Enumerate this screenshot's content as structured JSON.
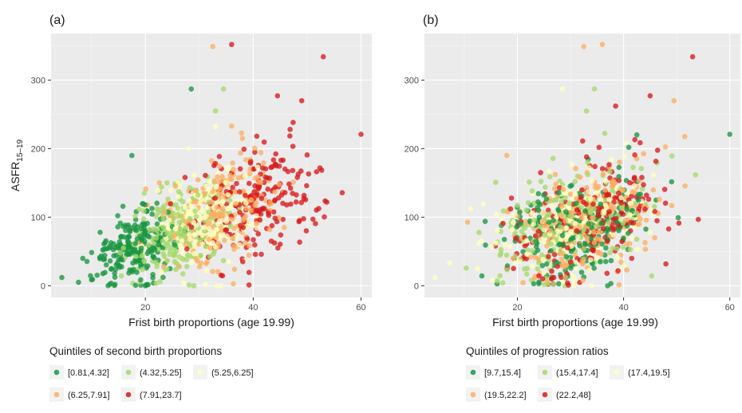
{
  "colors": {
    "q1": "#1a9641",
    "q2": "#a6d96a",
    "q3": "#ffffbf",
    "q4": "#fdae61",
    "q5": "#d7191c"
  },
  "chart_data": [
    {
      "type": "scatter",
      "panel_label": "(a)",
      "xlabel": "Frist birth proportions (age 19.99)",
      "ylabel": "ASFR",
      "ylabel_subscript": "15–19",
      "xlim": [
        2.5,
        62
      ],
      "ylim": [
        -17,
        368
      ],
      "x_ticks": [
        "20",
        "40",
        "60"
      ],
      "y_ticks": [
        "0",
        "100",
        "200",
        "300"
      ],
      "grid": true,
      "legend_title": "Quintiles of second birth proportions",
      "legend_position": "bottom",
      "legend": [
        "[0.81,4.32]",
        "(4.32,5.25]",
        "(5.25,6.25]",
        "(6.25,7.91]",
        "(7.91,23.7]"
      ],
      "series": [
        {
          "name": "[0.81,4.32]",
          "color_key": "q1",
          "center": [
            18,
            55
          ],
          "spread": [
            4,
            24
          ],
          "count": 230,
          "points": [
            [
              4.5,
              12
            ],
            [
              17.5,
              190
            ],
            [
              28.5,
              287
            ],
            [
              20,
              0
            ]
          ]
        },
        {
          "name": "(4.32,5.25]",
          "color_key": "q2",
          "center": [
            26,
            80
          ],
          "spread": [
            4.5,
            32
          ],
          "count": 220,
          "points": [
            [
              34.5,
              287
            ],
            [
              29,
              0
            ],
            [
              33,
              255
            ],
            [
              24,
              150
            ]
          ]
        },
        {
          "name": "(5.25,6.25]",
          "color_key": "q3",
          "center": [
            31,
            95
          ],
          "spread": [
            4.5,
            34
          ],
          "count": 220,
          "points": [
            [
              34,
              0
            ],
            [
              33,
              232
            ],
            [
              28,
              200
            ]
          ]
        },
        {
          "name": "(6.25,7.91]",
          "color_key": "q4",
          "center": [
            35,
            115
          ],
          "spread": [
            5,
            38
          ],
          "count": 210,
          "points": [
            [
              32.5,
              349
            ],
            [
              36,
              233
            ],
            [
              38,
              215
            ]
          ]
        },
        {
          "name": "(7.91,23.7]",
          "color_key": "q5",
          "center": [
            41,
            120
          ],
          "spread": [
            6,
            40
          ],
          "count": 220,
          "points": [
            [
              36,
              352
            ],
            [
              53,
              334
            ],
            [
              44.5,
              277
            ],
            [
              60,
              221
            ],
            [
              49,
              270
            ]
          ]
        }
      ]
    },
    {
      "type": "scatter",
      "panel_label": "(b)",
      "xlabel": "First birth proportions (age 19.99)",
      "ylabel": "",
      "xlim": [
        2.5,
        62
      ],
      "ylim": [
        -17,
        368
      ],
      "x_ticks": [
        "20",
        "40",
        "60"
      ],
      "y_ticks": [
        "0",
        "100",
        "200",
        "300"
      ],
      "grid": true,
      "legend_title": "Quintiles of progression ratios",
      "legend_position": "bottom",
      "legend": [
        "[9.7,15.4]",
        "(15.4,17.4]",
        "(17.4,19.5]",
        "(19.5,22.2]",
        "(22.2,48]"
      ],
      "series": [
        {
          "name": "[9.7,15.4]",
          "color_key": "q1",
          "center": [
            31,
            85
          ],
          "spread": [
            7,
            38
          ],
          "count": 220,
          "points": [
            [
              60,
              221
            ],
            [
              42.5,
              220
            ],
            [
              37,
              0
            ]
          ]
        },
        {
          "name": "(15.4,17.4]",
          "color_key": "q2",
          "center": [
            30,
            88
          ],
          "spread": [
            7,
            38
          ],
          "count": 220,
          "points": [
            [
              34.5,
              287
            ],
            [
              33,
              255
            ],
            [
              29,
              0
            ]
          ]
        },
        {
          "name": "(17.4,19.5]",
          "color_key": "q3",
          "center": [
            31,
            90
          ],
          "spread": [
            7,
            38
          ],
          "count": 220,
          "points": [
            [
              4.5,
              12
            ],
            [
              28.5,
              287
            ],
            [
              34,
              0
            ]
          ]
        },
        {
          "name": "(19.5,22.2]",
          "color_key": "q4",
          "center": [
            32,
            92
          ],
          "spread": [
            7,
            38
          ],
          "count": 220,
          "points": [
            [
              36,
              352
            ],
            [
              32.5,
              349
            ],
            [
              49.5,
              270
            ],
            [
              18,
              190
            ]
          ]
        },
        {
          "name": "(22.2,48]",
          "color_key": "q5",
          "center": [
            34,
            95
          ],
          "spread": [
            7,
            40
          ],
          "count": 220,
          "points": [
            [
              53,
              334
            ],
            [
              45,
              277
            ],
            [
              38.5,
              262
            ]
          ]
        }
      ]
    }
  ]
}
